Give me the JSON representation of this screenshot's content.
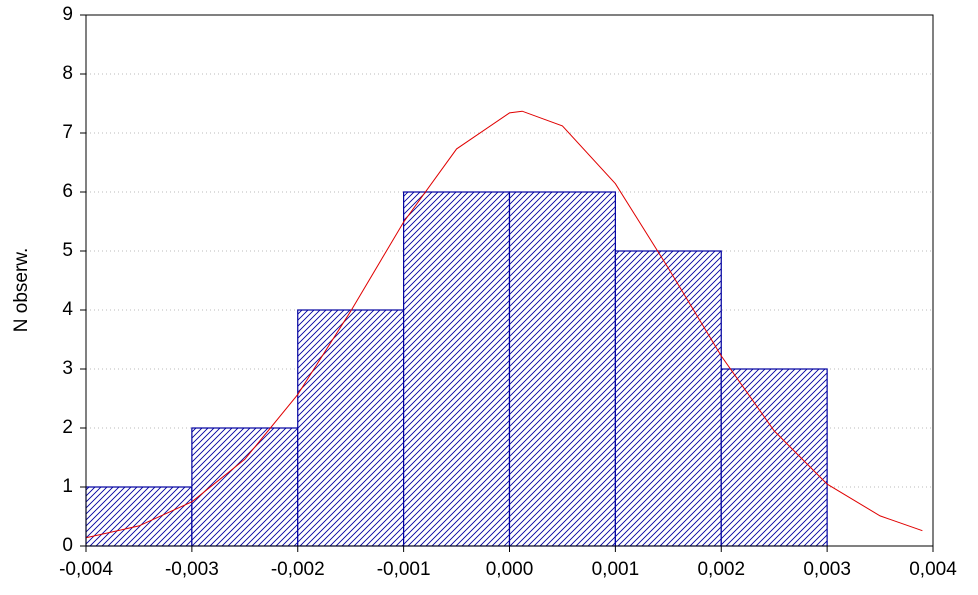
{
  "chart_data": {
    "type": "histogram",
    "ylabel": "N obserw.",
    "bins": [
      -0.004,
      -0.003,
      -0.002,
      -0.001,
      0.0,
      0.001,
      0.002,
      0.003
    ],
    "values": [
      1,
      2,
      4,
      6,
      6,
      5,
      3
    ],
    "color": "#0000a0",
    "curve": {
      "color": "#e00000",
      "x": [
        -0.004,
        -0.0035,
        -0.003,
        -0.0025,
        -0.002,
        -0.0015,
        -0.001,
        -0.0005,
        0.0,
        0.00012,
        0.0005,
        0.001,
        0.0015,
        0.002,
        0.0025,
        0.003,
        0.0035,
        0.0039
      ],
      "values": [
        0.14,
        0.34,
        0.75,
        1.47,
        2.57,
        3.98,
        5.49,
        6.73,
        7.34,
        7.37,
        7.12,
        6.14,
        4.71,
        3.22,
        1.95,
        1.05,
        0.51,
        0.26
      ]
    },
    "xlim": [
      -0.004,
      0.004
    ],
    "ylim": [
      0,
      9
    ],
    "xticks": [
      {
        "value": -0.004,
        "label": "-0,004"
      },
      {
        "value": -0.003,
        "label": "-0,003"
      },
      {
        "value": -0.002,
        "label": "-0,002"
      },
      {
        "value": -0.001,
        "label": "-0,001"
      },
      {
        "value": 0.0,
        "label": "0,000"
      },
      {
        "value": 0.001,
        "label": "0,001"
      },
      {
        "value": 0.002,
        "label": "0,002"
      },
      {
        "value": 0.003,
        "label": "0,003"
      },
      {
        "value": 0.004,
        "label": "0,004"
      }
    ],
    "yticks": [
      0,
      1,
      2,
      3,
      4,
      5,
      6,
      7,
      8,
      9
    ],
    "grid": true
  }
}
